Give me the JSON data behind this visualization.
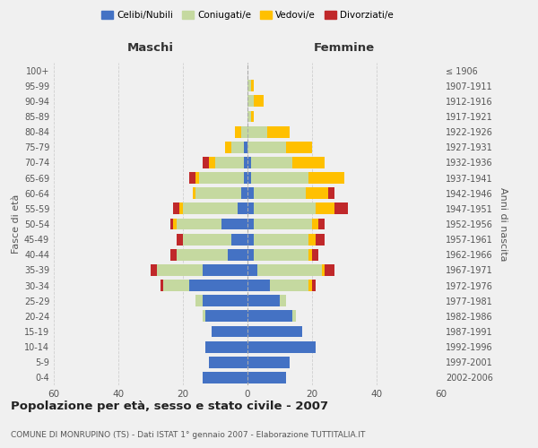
{
  "age_groups": [
    "0-4",
    "5-9",
    "10-14",
    "15-19",
    "20-24",
    "25-29",
    "30-34",
    "35-39",
    "40-44",
    "45-49",
    "50-54",
    "55-59",
    "60-64",
    "65-69",
    "70-74",
    "75-79",
    "80-84",
    "85-89",
    "90-94",
    "95-99",
    "100+"
  ],
  "birth_years": [
    "2002-2006",
    "1997-2001",
    "1992-1996",
    "1987-1991",
    "1982-1986",
    "1977-1981",
    "1972-1976",
    "1967-1971",
    "1962-1966",
    "1957-1961",
    "1952-1956",
    "1947-1951",
    "1942-1946",
    "1937-1941",
    "1932-1936",
    "1927-1931",
    "1922-1926",
    "1917-1921",
    "1912-1916",
    "1907-1911",
    "≤ 1906"
  ],
  "males": {
    "celibe": [
      14,
      12,
      13,
      11,
      13,
      14,
      18,
      14,
      6,
      5,
      8,
      3,
      2,
      1,
      1,
      1,
      0,
      0,
      0,
      0,
      0
    ],
    "coniugato": [
      0,
      0,
      0,
      0,
      1,
      2,
      8,
      14,
      16,
      15,
      14,
      17,
      14,
      14,
      9,
      4,
      2,
      0,
      0,
      0,
      0
    ],
    "vedovo": [
      0,
      0,
      0,
      0,
      0,
      0,
      0,
      0,
      0,
      0,
      1,
      1,
      1,
      1,
      2,
      2,
      2,
      0,
      0,
      0,
      0
    ],
    "divorziato": [
      0,
      0,
      0,
      0,
      0,
      0,
      1,
      2,
      2,
      2,
      1,
      2,
      0,
      2,
      2,
      0,
      0,
      0,
      0,
      0,
      0
    ]
  },
  "females": {
    "nubile": [
      12,
      13,
      21,
      17,
      14,
      10,
      7,
      3,
      2,
      2,
      2,
      2,
      2,
      1,
      1,
      0,
      0,
      0,
      0,
      0,
      0
    ],
    "coniugata": [
      0,
      0,
      0,
      0,
      1,
      2,
      12,
      20,
      17,
      17,
      18,
      19,
      16,
      18,
      13,
      12,
      6,
      1,
      2,
      1,
      0
    ],
    "vedova": [
      0,
      0,
      0,
      0,
      0,
      0,
      1,
      1,
      1,
      2,
      2,
      6,
      7,
      11,
      10,
      8,
      7,
      1,
      3,
      1,
      0
    ],
    "divorziata": [
      0,
      0,
      0,
      0,
      0,
      0,
      1,
      3,
      2,
      3,
      2,
      4,
      2,
      0,
      0,
      0,
      0,
      0,
      0,
      0,
      0
    ]
  },
  "colors": {
    "celibe": "#4472c4",
    "coniugato": "#c5d9a0",
    "vedovo": "#ffc000",
    "divorziato": "#c0282a"
  },
  "title": "Popolazione per età, sesso e stato civile - 2007",
  "subtitle": "COMUNE DI MONRUPINO (TS) - Dati ISTAT 1° gennaio 2007 - Elaborazione TUTTITALIA.IT",
  "xlabel_left": "Maschi",
  "xlabel_right": "Femmine",
  "ylabel_left": "Fasce di età",
  "ylabel_right": "Anni di nascita",
  "xlim": 60,
  "xticks": [
    60,
    40,
    20,
    0,
    20,
    40,
    60
  ],
  "legend_labels": [
    "Celibi/Nubili",
    "Coniugati/e",
    "Vedovi/e",
    "Divorziati/e"
  ],
  "background_color": "#f0f0f0",
  "grid_color": "#cccccc"
}
